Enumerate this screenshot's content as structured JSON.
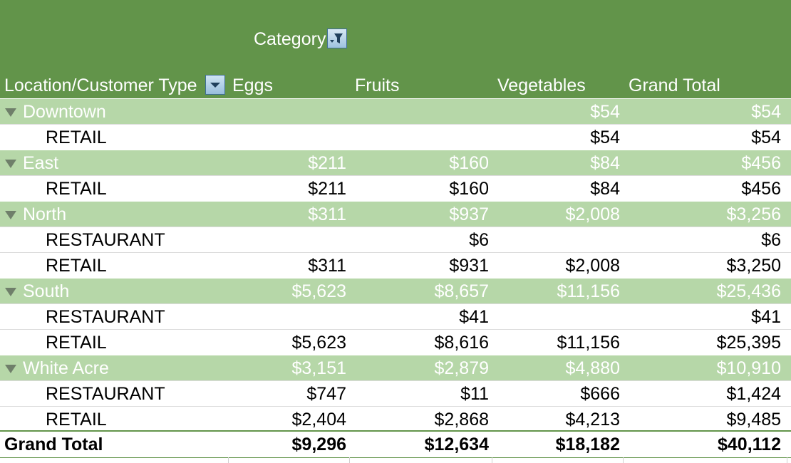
{
  "header": {
    "category_label": "Category",
    "row_label": "Location/Customer Type",
    "columns": [
      "Eggs",
      "Fruits",
      "Vegetables",
      "Grand Total"
    ]
  },
  "groups": [
    {
      "name": "Downtown",
      "values": [
        "",
        "",
        "$54",
        "$54"
      ],
      "rows": [
        {
          "type": "RETAIL",
          "values": [
            "",
            "",
            "$54",
            "$54"
          ]
        }
      ]
    },
    {
      "name": "East",
      "values": [
        "$211",
        "$160",
        "$84",
        "$456"
      ],
      "rows": [
        {
          "type": "RETAIL",
          "values": [
            "$211",
            "$160",
            "$84",
            "$456"
          ]
        }
      ]
    },
    {
      "name": "North",
      "values": [
        "$311",
        "$937",
        "$2,008",
        "$3,256"
      ],
      "rows": [
        {
          "type": "RESTAURANT",
          "values": [
            "",
            "$6",
            "",
            "$6"
          ]
        },
        {
          "type": "RETAIL",
          "values": [
            "$311",
            "$931",
            "$2,008",
            "$3,250"
          ]
        }
      ]
    },
    {
      "name": "South",
      "values": [
        "$5,623",
        "$8,657",
        "$11,156",
        "$25,436"
      ],
      "rows": [
        {
          "type": "RESTAURANT",
          "values": [
            "",
            "$41",
            "",
            "$41"
          ]
        },
        {
          "type": "RETAIL",
          "values": [
            "$5,623",
            "$8,616",
            "$11,156",
            "$25,395"
          ]
        }
      ]
    },
    {
      "name": "White Acre",
      "values": [
        "$3,151",
        "$2,879",
        "$4,880",
        "$10,910"
      ],
      "rows": [
        {
          "type": "RESTAURANT",
          "values": [
            "$747",
            "$11",
            "$666",
            "$1,424"
          ]
        },
        {
          "type": "RETAIL",
          "values": [
            "$2,404",
            "$2,868",
            "$4,213",
            "$9,485"
          ]
        }
      ]
    }
  ],
  "grand_total": {
    "label": "Grand Total",
    "values": [
      "$9,296",
      "$12,634",
      "$18,182",
      "$40,112"
    ]
  },
  "colors": {
    "header_bg": "#62944a",
    "group_row_bg": "#b6d7a8",
    "group_text": "#ffffff"
  },
  "icons": {
    "category_filter": "funnel-filter-icon",
    "row_dropdown": "dropdown-arrow-icon",
    "group_toggle": "collapse-triangle-icon"
  }
}
